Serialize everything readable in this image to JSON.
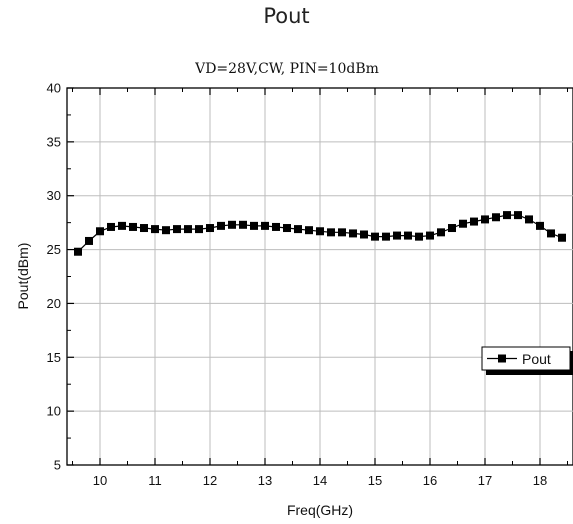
{
  "page": {
    "title": "Pout"
  },
  "chart_data": {
    "type": "line",
    "title": "VD=28V,CW, PIN=10dBm",
    "xlabel": "Freq(GHz)",
    "ylabel": "Pout(dBm)",
    "xlim": [
      9.4,
      18.6
    ],
    "ylim": [
      5,
      40
    ],
    "xticks": [
      10,
      11,
      12,
      13,
      14,
      15,
      16,
      17,
      18
    ],
    "yticks": [
      5,
      10,
      15,
      20,
      25,
      30,
      35,
      40
    ],
    "grid": true,
    "legend_position": "right",
    "series": [
      {
        "name": "Pout",
        "marker": "square",
        "color": "#000000",
        "x": [
          9.6,
          9.8,
          10.0,
          10.2,
          10.4,
          10.6,
          10.8,
          11.0,
          11.2,
          11.4,
          11.6,
          11.8,
          12.0,
          12.2,
          12.4,
          12.6,
          12.8,
          13.0,
          13.2,
          13.4,
          13.6,
          13.8,
          14.0,
          14.2,
          14.4,
          14.6,
          14.8,
          15.0,
          15.2,
          15.4,
          15.6,
          15.8,
          16.0,
          16.2,
          16.4,
          16.6,
          16.8,
          17.0,
          17.2,
          17.4,
          17.6,
          17.8,
          18.0,
          18.2,
          18.4
        ],
        "values": [
          24.8,
          25.8,
          26.7,
          27.1,
          27.2,
          27.1,
          27.0,
          26.9,
          26.8,
          26.9,
          26.9,
          26.9,
          27.0,
          27.2,
          27.3,
          27.3,
          27.2,
          27.2,
          27.1,
          27.0,
          26.9,
          26.8,
          26.7,
          26.6,
          26.6,
          26.5,
          26.4,
          26.2,
          26.2,
          26.3,
          26.3,
          26.2,
          26.3,
          26.6,
          27.0,
          27.4,
          27.6,
          27.8,
          28.0,
          28.2,
          28.2,
          27.8,
          27.2,
          26.5,
          26.1
        ]
      }
    ]
  }
}
